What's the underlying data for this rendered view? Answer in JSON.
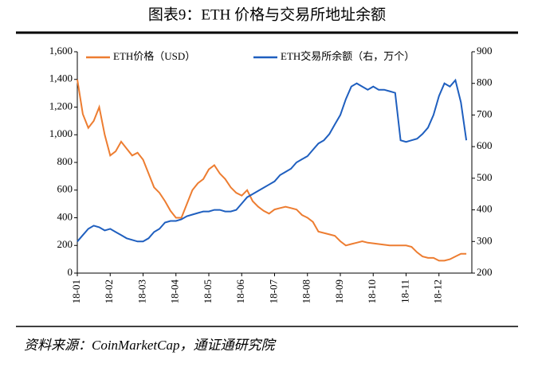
{
  "chart_data": {
    "type": "line",
    "title": "图表9：ETH 价格与交易所地址余额",
    "source": "资料来源：CoinMarketCap，通证通研究院",
    "categories": [
      "18-01",
      null,
      null,
      null,
      null,
      null,
      "18-02",
      null,
      null,
      null,
      null,
      null,
      "18-03",
      null,
      null,
      null,
      null,
      null,
      "18-04",
      null,
      null,
      null,
      null,
      null,
      "18-05",
      null,
      null,
      null,
      null,
      null,
      "18-06",
      null,
      null,
      null,
      null,
      null,
      "18-07",
      null,
      null,
      null,
      null,
      null,
      "18-08",
      null,
      null,
      null,
      null,
      null,
      "18-09",
      null,
      null,
      null,
      null,
      null,
      "18-10",
      null,
      null,
      null,
      null,
      null,
      "18-11",
      null,
      null,
      null,
      null,
      null,
      "18-12",
      null,
      null,
      null,
      null,
      null
    ],
    "series": [
      {
        "name": "ETH价格（USD）",
        "color": "#ed7d31",
        "values": [
          1400,
          1150,
          1050,
          1100,
          1200,
          1000,
          850,
          880,
          950,
          900,
          850,
          870,
          820,
          720,
          620,
          580,
          520,
          450,
          400,
          400,
          500,
          600,
          650,
          680,
          750,
          780,
          720,
          680,
          620,
          580,
          560,
          600,
          520,
          480,
          450,
          430,
          460,
          470,
          480,
          470,
          460,
          420,
          400,
          370,
          300,
          290,
          280,
          270,
          230,
          200,
          210,
          220,
          230,
          220,
          215,
          210,
          205,
          200,
          200,
          200,
          200,
          190,
          150,
          120,
          110,
          110,
          90,
          90,
          100,
          120,
          140,
          140
        ]
      },
      {
        "name": "ETH交易所余额（右，万个）",
        "color": "#1f5fbf",
        "axis": "y2",
        "values": [
          300,
          320,
          340,
          350,
          345,
          335,
          340,
          330,
          320,
          310,
          305,
          300,
          300,
          310,
          330,
          340,
          360,
          365,
          365,
          370,
          380,
          385,
          390,
          395,
          395,
          400,
          400,
          395,
          395,
          400,
          420,
          440,
          450,
          460,
          470,
          480,
          490,
          510,
          520,
          530,
          550,
          560,
          570,
          590,
          610,
          620,
          640,
          670,
          700,
          750,
          790,
          800,
          790,
          780,
          790,
          780,
          780,
          775,
          770,
          620,
          615,
          620,
          625,
          640,
          660,
          700,
          760,
          800,
          790,
          810,
          740,
          620
        ]
      }
    ],
    "ylim": [
      0,
      1600
    ],
    "yticks": [
      0,
      200,
      400,
      600,
      800,
      1000,
      {
        "value": 1000,
        "label": "1,000"
      },
      {
        "value": 1200,
        "label": "1,200"
      },
      {
        "value": 1400,
        "label": "1,400"
      },
      {
        "value": 1600,
        "label": "1,600"
      }
    ],
    "y2lim": [
      200,
      900
    ],
    "y2ticks": [
      200,
      300,
      400,
      500,
      600,
      700,
      800,
      900
    ]
  }
}
